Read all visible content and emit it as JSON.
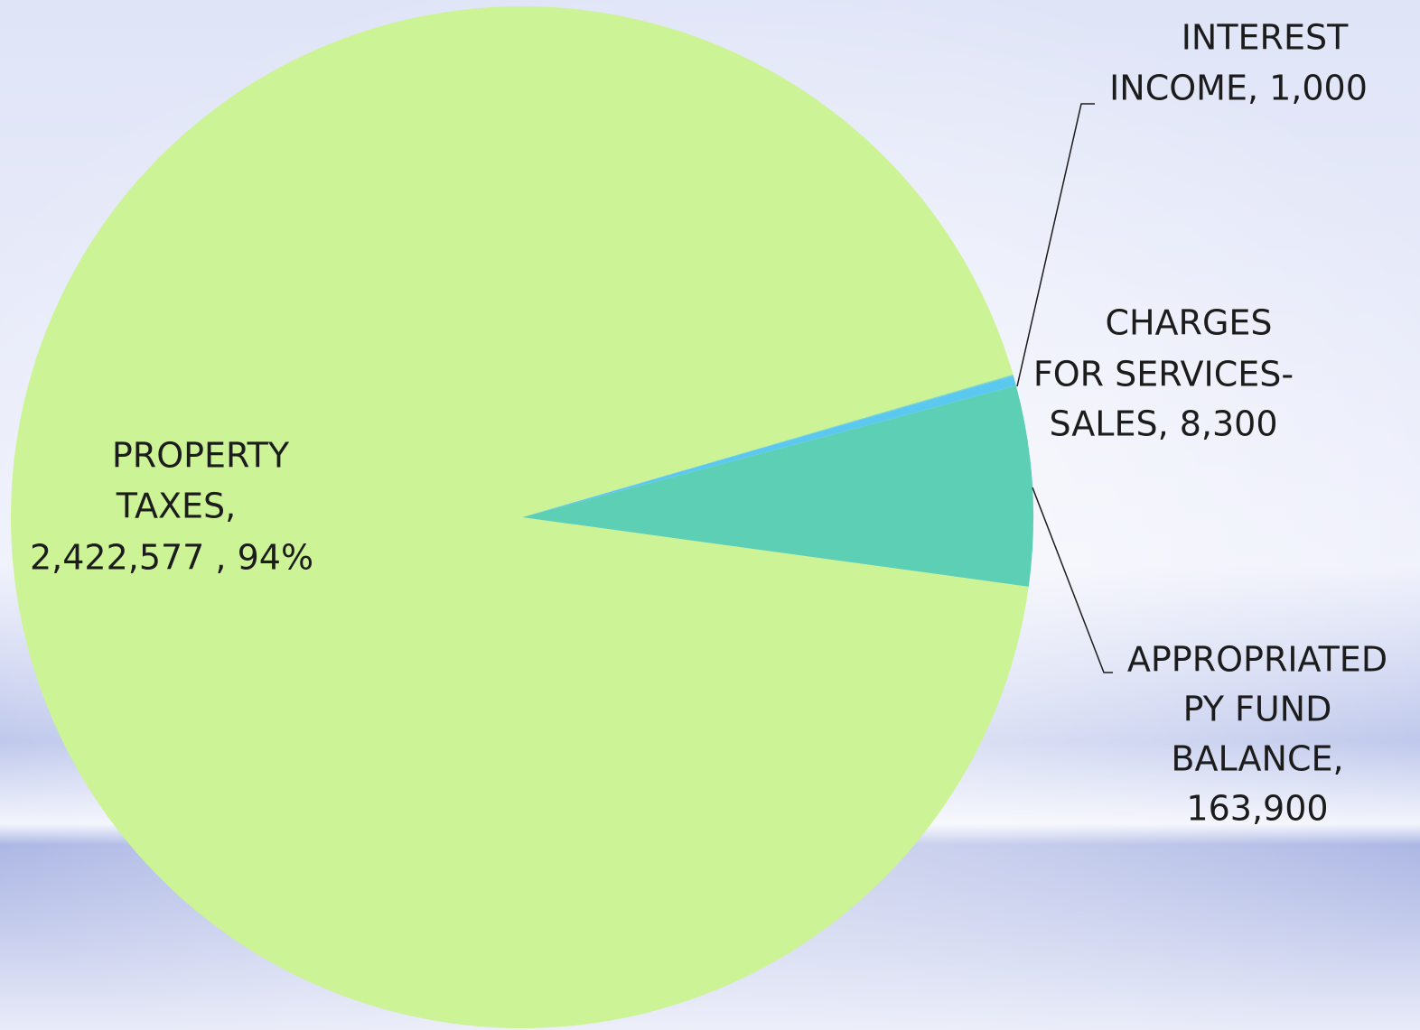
{
  "chart_data": {
    "type": "pie",
    "values": [
      2422577,
      1000,
      8300,
      163900
    ],
    "colors": [
      "#ccf396",
      "#7fd6c6",
      "#5bc8ef",
      "#5ccfb4"
    ],
    "data_labels": [
      [
        "PROPERTY",
        "TAXES,",
        "2,422,577 , 94%"
      ],
      [
        "INTEREST",
        "INCOME, 1,000"
      ],
      [
        "CHARGES",
        "FOR SERVICES-",
        "SALES, 8,300"
      ],
      [
        "APPROPRIATED",
        "PY FUND",
        "BALANCE,",
        "163,900"
      ]
    ]
  }
}
